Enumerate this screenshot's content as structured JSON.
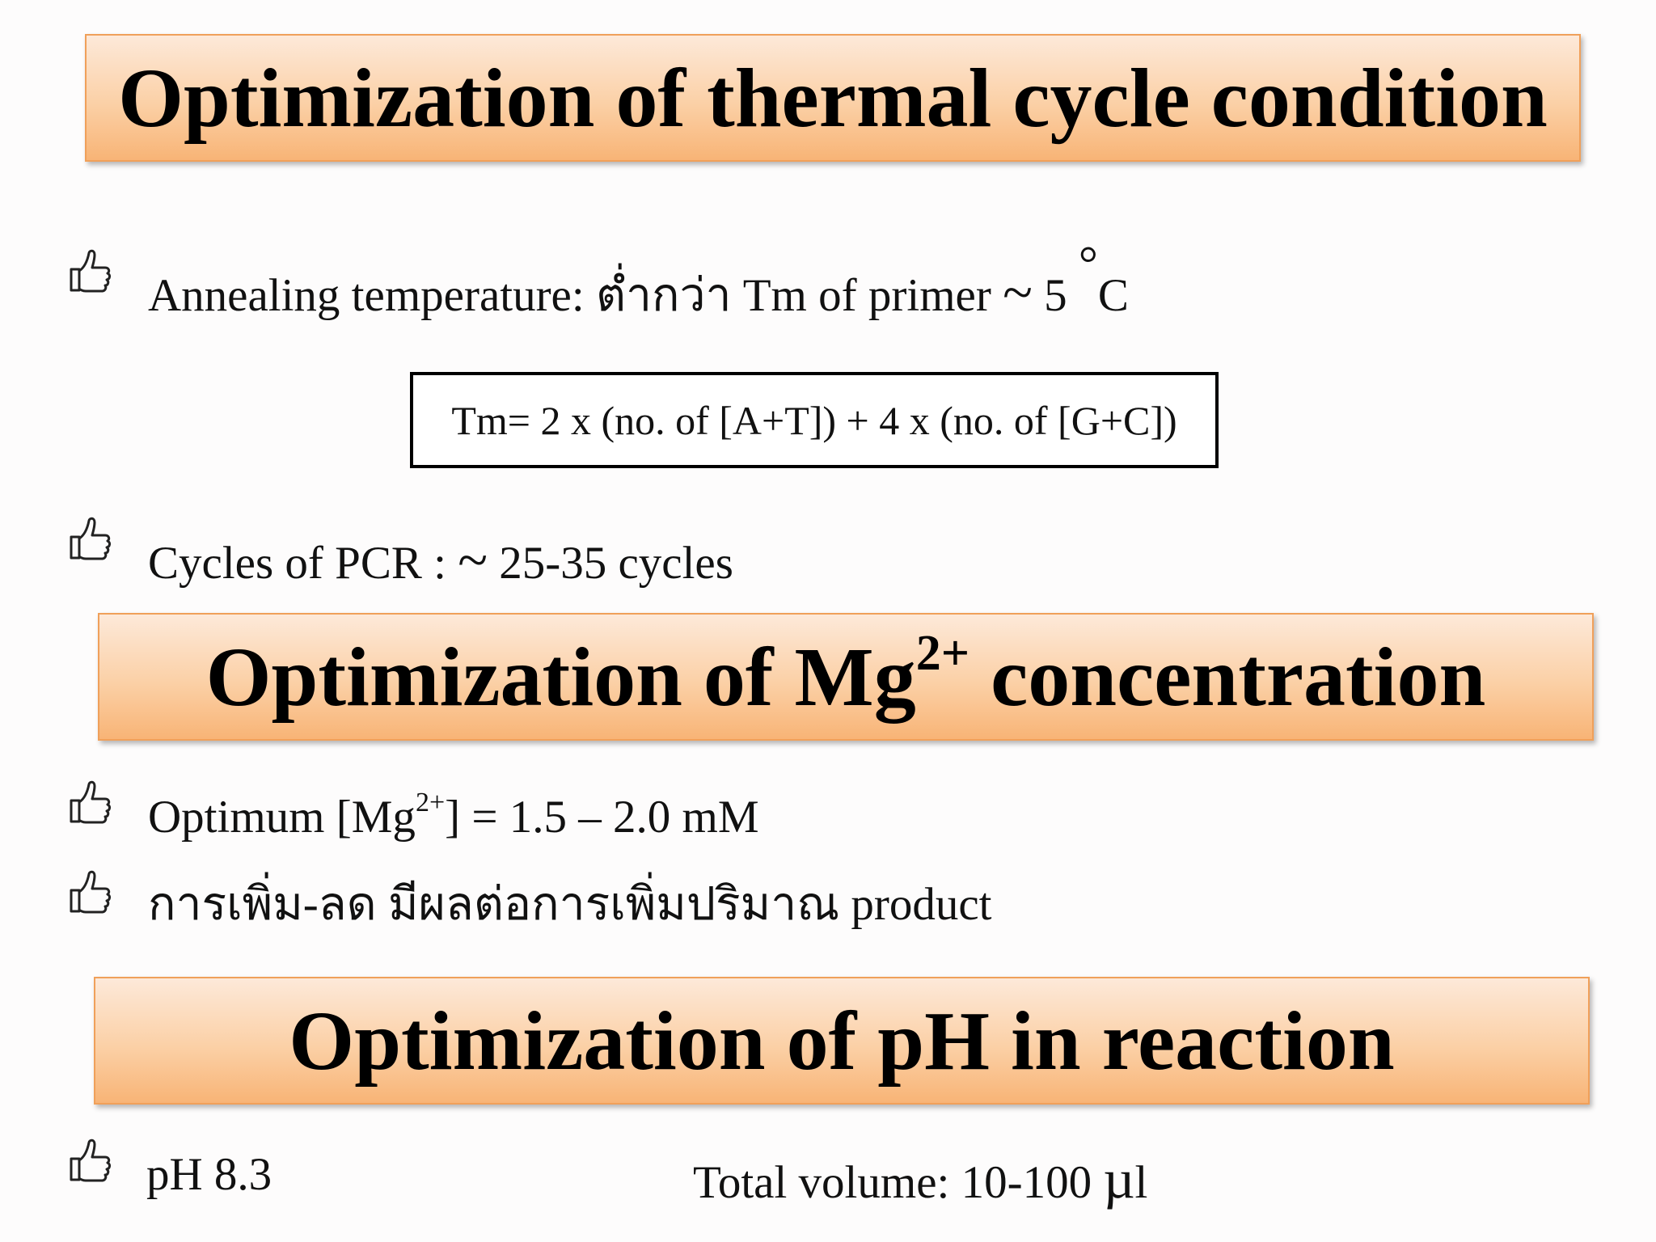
{
  "sections": [
    {
      "heading": "Optimization of thermal cycle condition",
      "items": [
        {
          "prefix": "Annealing temperature: ต่ำกว่า Tm of primer ",
          "tilde": "~",
          "suffix": " 5 ",
          "degree": "°",
          "unit": "C"
        },
        {
          "prefix": "Cycles of PCR : ",
          "tilde": "~",
          "suffix": " 25-35 cycles"
        }
      ],
      "formula": "Tm= 2 x (no. of [A+T]) + 4 x (no. of [G+C])"
    },
    {
      "heading_main": "Optimization of Mg",
      "heading_sup": "2+",
      "heading_tail": " concentration",
      "items": [
        {
          "prefix": "Optimum [Mg",
          "sup": "2+",
          "suffix": "] = 1.5 – 2.0 mM"
        },
        {
          "text": "การเพิ่ม-ลด มีผลต่อการเพิ่มปริมาณ product"
        }
      ]
    },
    {
      "heading": "Optimization of pH in reaction",
      "items": [
        {
          "text": "pH 8.3"
        }
      ],
      "volume": {
        "prefix": "Total volume: 10-100 ",
        "mu": "µ",
        "unit": "l"
      }
    }
  ],
  "icons": {
    "bullet": "thumbs-up-outline-icon"
  }
}
